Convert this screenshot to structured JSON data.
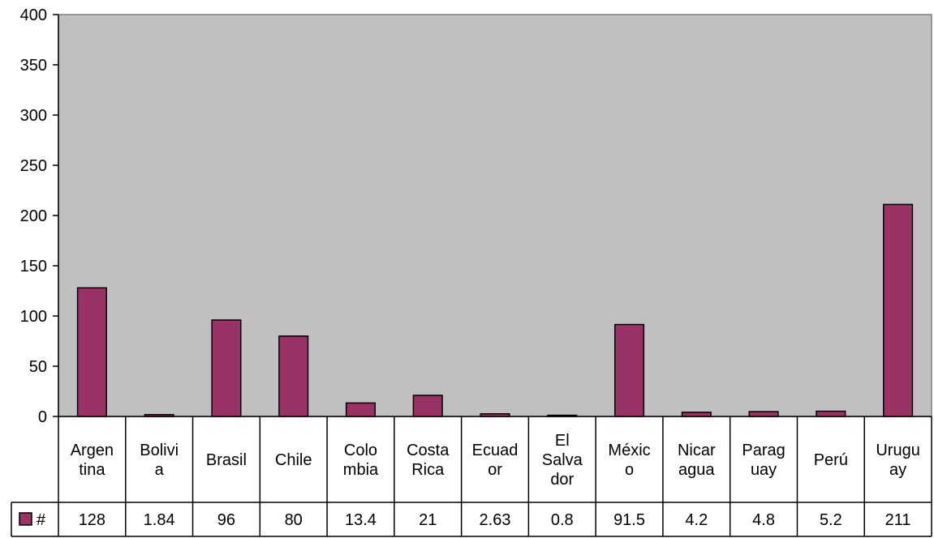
{
  "chart_data": {
    "type": "bar",
    "title": "",
    "xlabel": "",
    "ylabel": "",
    "ylim": [
      0,
      400
    ],
    "yticks": [
      0,
      50,
      100,
      150,
      200,
      250,
      300,
      350,
      400
    ],
    "grid": false,
    "legend": "data-table-left",
    "categories": [
      "Argentina",
      "Bolivia",
      "Brasil",
      "Chile",
      "Colombia",
      "Costa Rica",
      "Ecuador",
      "El Salvador",
      "México",
      "Nicaragua",
      "Paraguay",
      "Perú",
      "Uruguay"
    ],
    "category_label_lines": [
      [
        "Argen",
        "tina"
      ],
      [
        "Bolivi",
        "a"
      ],
      [
        "Brasil"
      ],
      [
        "Chile"
      ],
      [
        "Colo",
        "mbia"
      ],
      [
        "Costa",
        "Rica"
      ],
      [
        "Ecuad",
        "or"
      ],
      [
        "El",
        "Salva",
        "dor"
      ],
      [
        "Méxic",
        "o"
      ],
      [
        "Nicar",
        "agua"
      ],
      [
        "Parag",
        "uay"
      ],
      [
        "Perú"
      ],
      [
        "Urugu",
        "ay"
      ]
    ],
    "series": [
      {
        "name": "#",
        "values": [
          128,
          1.84,
          96,
          80,
          13.4,
          21,
          2.63,
          0.8,
          91.5,
          4.2,
          4.8,
          5.2,
          211
        ],
        "value_labels": [
          "128",
          "1.84",
          "96",
          "80",
          "13.4",
          "21",
          "2.63",
          "0.8",
          "91.5",
          "4.2",
          "4.8",
          "5.2",
          "211"
        ]
      }
    ],
    "colors": {
      "plot_background": "#c0c0c0",
      "bar_fill": "#993366",
      "bar_stroke": "#000000",
      "axis": "#000000",
      "plot_border": "#808080"
    }
  }
}
